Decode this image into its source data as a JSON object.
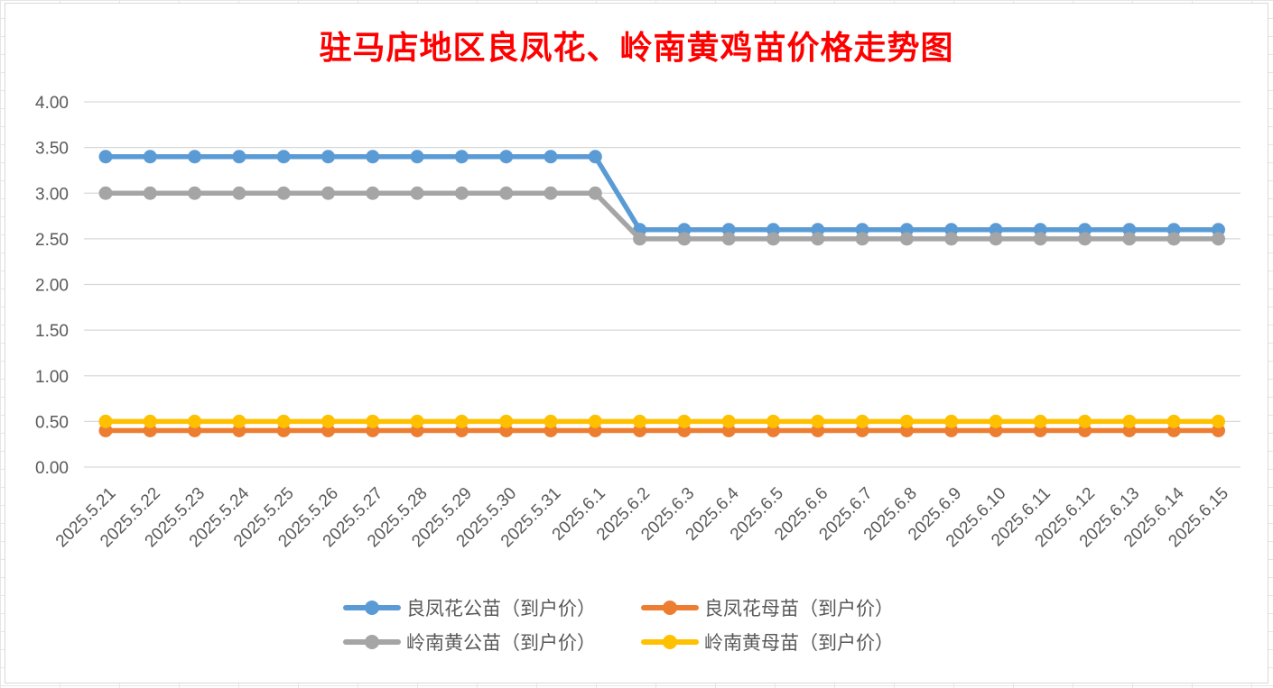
{
  "chart_data": {
    "type": "line",
    "title": "驻马店地区良凤花、岭南黄鸡苗价格走势图",
    "xlabel": "",
    "ylabel": "",
    "ylim": [
      0,
      4
    ],
    "y_ticks": [
      "0.00",
      "0.50",
      "1.00",
      "1.50",
      "2.00",
      "2.50",
      "3.00",
      "3.50",
      "4.00"
    ],
    "grid": true,
    "legend_position": "bottom",
    "categories": [
      "2025.5.21",
      "2025.5.22",
      "2025.5.23",
      "2025.5.24",
      "2025.5.25",
      "2025.5.26",
      "2025.5.27",
      "2025.5.28",
      "2025.5.29",
      "2025.5.30",
      "2025.5.31",
      "2025.6.1",
      "2025.6.2",
      "2025.6.3",
      "2025.6.4",
      "2025.6.5",
      "2025.6.6",
      "2025.6.7",
      "2025.6.8",
      "2025.6.9",
      "2025.6.10",
      "2025.6.11",
      "2025.6.12",
      "2025.6.13",
      "2025.6.14",
      "2025.6.15"
    ],
    "series": [
      {
        "name": "良凤花公苗（到户价）",
        "color": "#5b9bd5",
        "values": [
          3.4,
          3.4,
          3.4,
          3.4,
          3.4,
          3.4,
          3.4,
          3.4,
          3.4,
          3.4,
          3.4,
          3.4,
          2.6,
          2.6,
          2.6,
          2.6,
          2.6,
          2.6,
          2.6,
          2.6,
          2.6,
          2.6,
          2.6,
          2.6,
          2.6,
          2.6
        ]
      },
      {
        "name": "良凤花母苗（到户价）",
        "color": "#ed7d31",
        "values": [
          0.4,
          0.4,
          0.4,
          0.4,
          0.4,
          0.4,
          0.4,
          0.4,
          0.4,
          0.4,
          0.4,
          0.4,
          0.4,
          0.4,
          0.4,
          0.4,
          0.4,
          0.4,
          0.4,
          0.4,
          0.4,
          0.4,
          0.4,
          0.4,
          0.4,
          0.4
        ]
      },
      {
        "name": "岭南黄公苗（到户价）",
        "color": "#a5a5a5",
        "values": [
          3.0,
          3.0,
          3.0,
          3.0,
          3.0,
          3.0,
          3.0,
          3.0,
          3.0,
          3.0,
          3.0,
          3.0,
          2.5,
          2.5,
          2.5,
          2.5,
          2.5,
          2.5,
          2.5,
          2.5,
          2.5,
          2.5,
          2.5,
          2.5,
          2.5,
          2.5
        ]
      },
      {
        "name": "岭南黄母苗（到户价）",
        "color": "#ffc000",
        "values": [
          0.5,
          0.5,
          0.5,
          0.5,
          0.5,
          0.5,
          0.5,
          0.5,
          0.5,
          0.5,
          0.5,
          0.5,
          0.5,
          0.5,
          0.5,
          0.5,
          0.5,
          0.5,
          0.5,
          0.5,
          0.5,
          0.5,
          0.5,
          0.5,
          0.5,
          0.5
        ]
      }
    ]
  }
}
